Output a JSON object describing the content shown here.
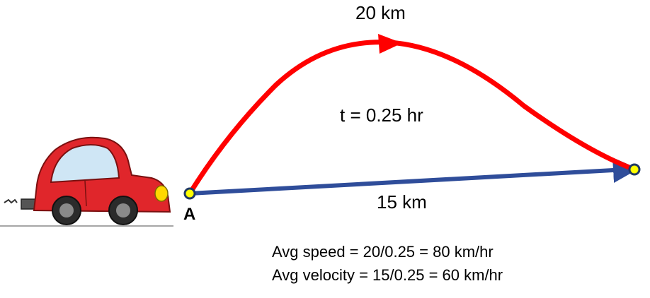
{
  "diagram": {
    "path_distance_label": "20 km",
    "time_label": "t = 0.25 hr",
    "displacement_label": "15 km",
    "start_point_label": "A",
    "avg_speed_text": "Avg speed = 20/0.25 = 80 km/hr",
    "avg_velocity_text": "Avg velocity = 15/0.25 = 60 km/hr"
  },
  "colors": {
    "distance_path": "#ff0000",
    "displacement_arrow": "#2f4d9a",
    "point_fill": "#ffff00",
    "point_stroke": "#1f3864",
    "car_body": "#e0262b",
    "car_window": "#cfe6f5",
    "headlight": "#ffd800"
  }
}
